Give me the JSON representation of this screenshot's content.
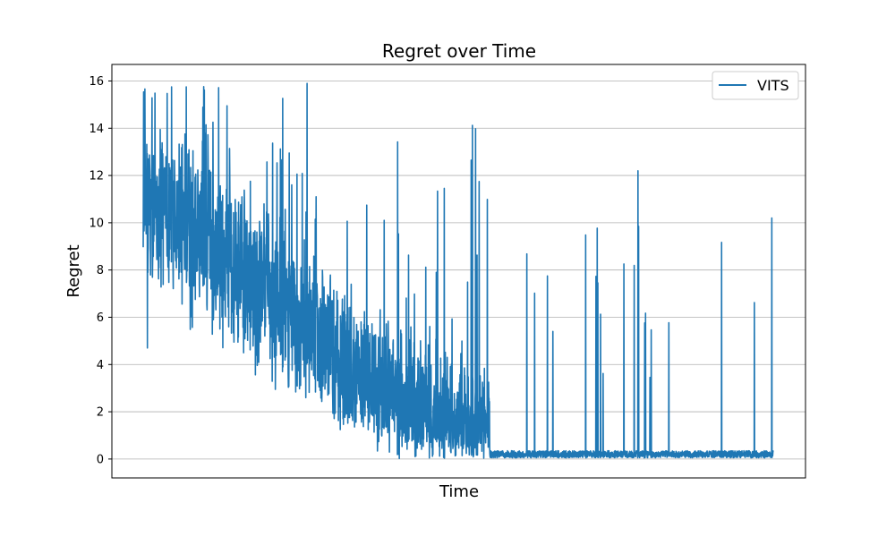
{
  "chart_data": {
    "type": "line",
    "title": "Regret over Time",
    "xlabel": "Time",
    "ylabel": "Regret",
    "ylim": [
      -0.8,
      16.7
    ],
    "yticks": [
      0,
      2,
      4,
      6,
      8,
      10,
      12,
      14,
      16
    ],
    "ytick_labels": [
      "0",
      "2",
      "4",
      "6",
      "8",
      "10",
      "12",
      "14",
      "16"
    ],
    "x_tick_labels_shown": false,
    "grid": "horizontal",
    "legend_position": "top-right",
    "series": [
      {
        "name": "VITS",
        "color": "#1f77b4",
        "n_points": 3000,
        "start": 10.5,
        "baseline_end": 0.2,
        "description": "Noisy decay: dense fluctuations around 9–10 early, many spikes up to ~16, converging to ~0.2 after roughly 55% of time with sporadic spikes to 4–12."
      }
    ]
  }
}
